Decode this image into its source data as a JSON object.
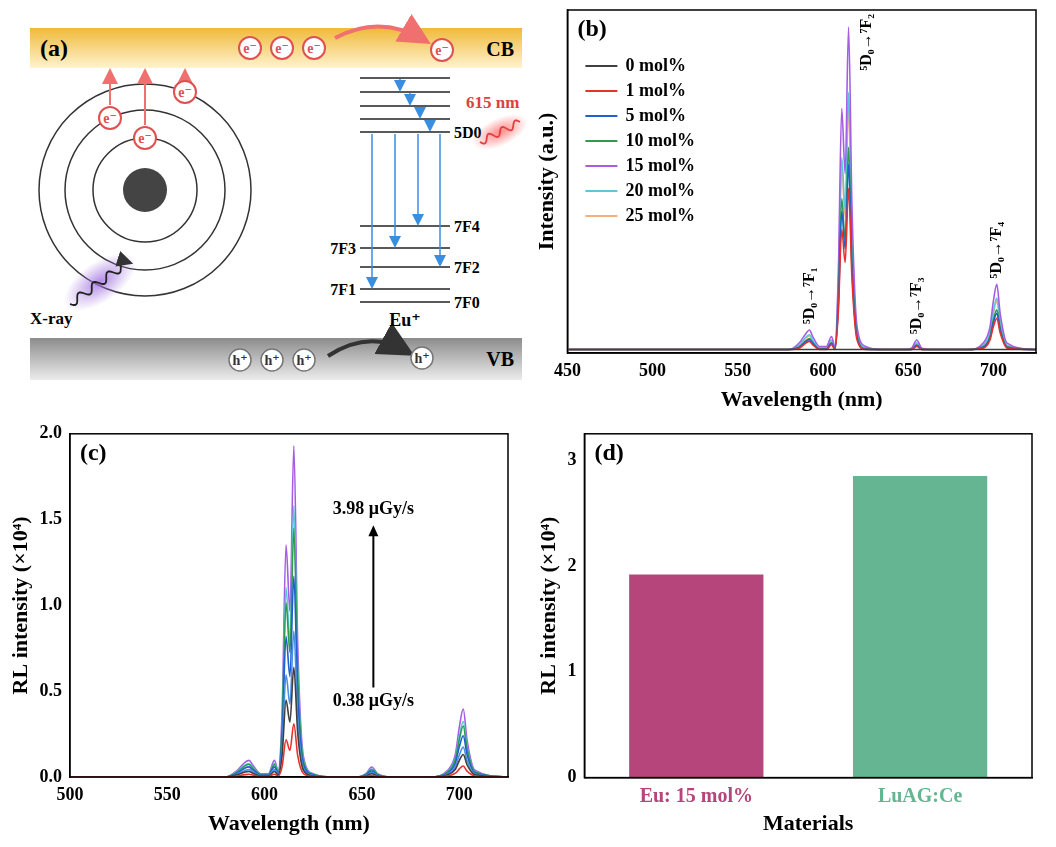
{
  "diagram": {
    "panel": "(a)",
    "conduction_band": "CB",
    "valence_band": "VB",
    "ion": "Eu⁺",
    "levels": [
      "5D0",
      "7F4",
      "7F3",
      "7F2",
      "7F1",
      "7F0"
    ],
    "emission": "615 nm",
    "excitation": "X-ray",
    "electron": "e⁻",
    "hole": "h⁺"
  },
  "chart_data": [
    {
      "type": "line",
      "panel": "(b)",
      "x_label": "Wavelength (nm)",
      "y_label": "Intensity (a.u.)",
      "x": [
        450,
        500,
        550,
        580,
        586,
        590,
        592,
        594,
        598,
        602,
        605,
        607,
        609,
        611,
        613,
        615,
        617,
        620,
        625,
        635,
        648,
        652,
        655,
        658,
        665,
        685,
        694,
        698,
        700,
        702,
        704,
        708,
        725
      ],
      "xlim": [
        450,
        725
      ],
      "xticks": [
        450,
        500,
        550,
        600,
        650,
        700
      ],
      "ylim": [
        0,
        100
      ],
      "tick_labels": "x",
      "grid": false,
      "legend": "upper left",
      "series": [
        {
          "name": "0 mol%",
          "color": "#404040",
          "values": [
            1,
            1,
            1,
            1,
            1,
            1,
            1,
            1,
            1,
            1,
            1,
            1,
            1,
            1,
            1,
            1,
            1,
            1,
            1,
            1,
            1,
            1,
            1,
            1,
            1,
            1,
            1,
            1,
            1,
            1,
            1,
            1,
            1
          ]
        },
        {
          "name": "1 mol%",
          "color": "#e8312b",
          "values": [
            1,
            1,
            1,
            1,
            1.4,
            2.9,
            3.4,
            2.4,
            1,
            1,
            2.4,
            1,
            12,
            36,
            26.4,
            48,
            21.6,
            3.8,
            1,
            1,
            1,
            1,
            1.9,
            1,
            1,
            1,
            1.4,
            3.8,
            7.7,
            10.1,
            5.8,
            1.4,
            1
          ]
        },
        {
          "name": "5 mol%",
          "color": "#1f5fd0",
          "values": [
            1,
            1,
            1,
            1,
            1.7,
            3.3,
            3.9,
            2.8,
            1.1,
            1.1,
            2.8,
            1.1,
            13.8,
            41.3,
            30.3,
            55,
            24.8,
            4.4,
            1.1,
            1,
            1,
            1,
            2.2,
            1,
            1,
            1,
            1.7,
            4.4,
            8.8,
            11.6,
            6.6,
            1.7,
            1
          ]
        },
        {
          "name": "10 mol%",
          "color": "#2e9b4f",
          "values": [
            1,
            1,
            1,
            1,
            1.8,
            3.6,
            4.2,
            3,
            1.2,
            1.2,
            3,
            1.2,
            15,
            45,
            33,
            60,
            27,
            4.8,
            1.2,
            1,
            1,
            1,
            2.4,
            1,
            1,
            1,
            1.8,
            4.8,
            9.6,
            12.6,
            7.2,
            1.8,
            1
          ]
        },
        {
          "name": "15 mol%",
          "color": "#a45ee5",
          "values": [
            1,
            1,
            1,
            1,
            2.9,
            5.7,
            6.7,
            4.8,
            1.9,
            1.9,
            4.8,
            1.9,
            23.8,
            71.3,
            52.3,
            95,
            42.8,
            7.6,
            1.9,
            1,
            1,
            1.4,
            3.8,
            1.4,
            1,
            1,
            2.9,
            7.6,
            15.2,
            20,
            11.4,
            2.9,
            1
          ]
        },
        {
          "name": "20 mol%",
          "color": "#5bc8d8",
          "values": [
            1,
            1,
            1,
            1,
            2.3,
            4.6,
            5.3,
            3.8,
            1.5,
            1.5,
            3.8,
            1.5,
            19,
            57,
            41.8,
            76,
            34.2,
            6.1,
            1.5,
            1,
            1,
            1.1,
            3,
            1.1,
            1,
            1,
            2.3,
            6.1,
            12.2,
            16,
            9.1,
            2.3,
            1
          ]
        },
        {
          "name": "25 mol%",
          "color": "#f5b07a",
          "values": [
            1,
            1,
            1,
            1,
            2.2,
            4.3,
            5,
            3.6,
            1.4,
            1.4,
            3.6,
            1.4,
            18,
            54,
            39.6,
            72,
            32.4,
            5.8,
            1.4,
            1,
            1,
            1.1,
            2.9,
            1.1,
            1,
            1,
            2.2,
            5.8,
            11.5,
            15.1,
            8.6,
            2.2,
            1
          ]
        }
      ],
      "annotations": [
        {
          "text": "⁵D₀→⁷F₁",
          "x": 592
        },
        {
          "text": "⁵D₀→⁷F₂",
          "x": 615
        },
        {
          "text": "⁵D₀→⁷F₃",
          "x": 655
        },
        {
          "text": "⁵D₀→⁷F₄",
          "x": 702
        }
      ]
    },
    {
      "type": "line",
      "panel": "(c)",
      "x_label": "Wavelength (nm)",
      "y_label": "RL intensity (×10⁴)",
      "x": [
        500,
        550,
        580,
        586,
        590,
        592,
        594,
        598,
        602,
        605,
        607,
        609,
        611,
        613,
        615,
        617,
        620,
        625,
        635,
        648,
        652,
        655,
        658,
        665,
        685,
        694,
        698,
        700,
        702,
        704,
        708,
        725
      ],
      "xlim": [
        500,
        725
      ],
      "xticks": [
        500,
        550,
        600,
        650,
        700
      ],
      "ylim": [
        0,
        2.0
      ],
      "yticks": [
        {
          "value": 0,
          "label": "0.0"
        },
        {
          "value": 0.5,
          "label": "0.5"
        },
        {
          "value": 1,
          "label": "1.0"
        },
        {
          "value": 1.5,
          "label": "1.5"
        },
        {
          "value": 2,
          "label": "2.0"
        }
      ],
      "grid": false,
      "series": [
        {
          "color": "#e8312b",
          "values": [
            0,
            0,
            0,
            0.006,
            0.014,
            0.016,
            0.011,
            0.003,
            0.003,
            0.016,
            0.006,
            0.062,
            0.217,
            0.155,
            0.31,
            0.124,
            0.019,
            0.003,
            0,
            0,
            0.003,
            0.009,
            0.003,
            0,
            0,
            0.006,
            0.022,
            0.047,
            0.064,
            0.034,
            0.006,
            0
          ]
        },
        {
          "color": "#404040",
          "values": [
            0,
            0,
            0,
            0.013,
            0.029,
            0.032,
            0.022,
            0.006,
            0.006,
            0.032,
            0.013,
            0.128,
            0.448,
            0.32,
            0.64,
            0.256,
            0.038,
            0.006,
            0,
            0,
            0.006,
            0.019,
            0.006,
            0,
            0,
            0.013,
            0.045,
            0.096,
            0.131,
            0.07,
            0.013,
            0
          ]
        },
        {
          "color": "#4a90e2",
          "values": [
            0,
            0,
            0,
            0.017,
            0.038,
            0.043,
            0.03,
            0.009,
            0.009,
            0.043,
            0.017,
            0.17,
            0.595,
            0.425,
            0.85,
            0.34,
            0.051,
            0.009,
            0,
            0,
            0.009,
            0.026,
            0.009,
            0,
            0,
            0.017,
            0.06,
            0.128,
            0.174,
            0.094,
            0.017,
            0
          ]
        },
        {
          "color": "#1f5fd0",
          "values": [
            0,
            0,
            0,
            0.023,
            0.053,
            0.059,
            0.041,
            0.012,
            0.012,
            0.059,
            0.023,
            0.234,
            0.819,
            0.585,
            1.17,
            0.468,
            0.07,
            0.012,
            0,
            0,
            0.012,
            0.035,
            0.012,
            0,
            0,
            0.023,
            0.082,
            0.176,
            0.24,
            0.129,
            0.023,
            0
          ]
        },
        {
          "color": "#2e9b4f",
          "values": [
            0,
            0,
            0,
            0.029,
            0.065,
            0.073,
            0.051,
            0.015,
            0.015,
            0.073,
            0.029,
            0.29,
            1.015,
            0.725,
            1.45,
            0.58,
            0.087,
            0.015,
            0,
            0,
            0.015,
            0.044,
            0.015,
            0,
            0,
            0.029,
            0.102,
            0.218,
            0.297,
            0.16,
            0.029,
            0
          ]
        },
        {
          "color": "#5bc8d8",
          "values": [
            0,
            0,
            0,
            0.032,
            0.071,
            0.079,
            0.055,
            0.016,
            0.016,
            0.079,
            0.032,
            0.316,
            1.106,
            0.79,
            1.58,
            0.632,
            0.095,
            0.016,
            0,
            0,
            0.016,
            0.047,
            0.016,
            0,
            0,
            0.032,
            0.111,
            0.237,
            0.324,
            0.174,
            0.032,
            0
          ]
        },
        {
          "color": "#a45ee5",
          "values": [
            0,
            0,
            0,
            0.039,
            0.087,
            0.097,
            0.068,
            0.019,
            0.019,
            0.097,
            0.039,
            0.386,
            1.351,
            0.965,
            1.93,
            0.772,
            0.116,
            0.019,
            0,
            0,
            0.019,
            0.058,
            0.019,
            0,
            0,
            0.039,
            0.135,
            0.29,
            0.396,
            0.212,
            0.039,
            0
          ]
        }
      ],
      "annotations": [
        "3.98 μGy/s",
        "0.38 μGy/s"
      ]
    },
    {
      "type": "bar",
      "panel": "(d)",
      "x_label": "Materials",
      "y_label": "RL intensity (×10⁴)",
      "categories": [
        "Eu: 15 mol%",
        "LuAG:Ce"
      ],
      "values": [
        1.92,
        2.85
      ],
      "colors": [
        "#b5457a",
        "#66b592"
      ],
      "ylim": [
        0,
        3.25
      ],
      "yticks": [
        0,
        1,
        2,
        3
      ],
      "grid": false
    }
  ]
}
